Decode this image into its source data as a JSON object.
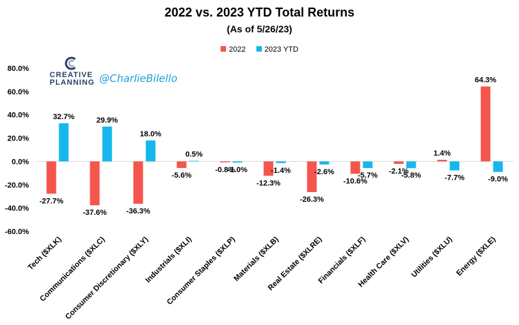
{
  "chart_data": {
    "type": "bar",
    "title": "2022 vs. 2023 YTD Total Returns",
    "subtitle": "(As of 5/26/23)",
    "categories": [
      "Tech ($XLK)",
      "Communications ($XLC)",
      "Consumer Discretionary ($XLY)",
      "Industrials ($XLI)",
      "Consumer Staples ($XLP)",
      "Materials ($XLB)",
      "Real Estate ($XLRE)",
      "Financials ($XLF)",
      "Health Care ($XLV)",
      "Utilities ($XLU)",
      "Energy ($XLE)"
    ],
    "series": [
      {
        "name": "2022",
        "color": "#f4554d",
        "values": [
          -27.7,
          -37.6,
          -36.3,
          -5.6,
          -0.8,
          -12.3,
          -26.3,
          -10.6,
          -2.1,
          1.4,
          64.3
        ],
        "labels": [
          "-27.7%",
          "-37.6%",
          "-36.3%",
          "-5.6%",
          "-0.8%",
          "-12.3%",
          "-26.3%",
          "-10.6%",
          "-2.1%",
          "1.4%",
          "64.3%"
        ]
      },
      {
        "name": "2023 YTD",
        "color": "#15b7ec",
        "values": [
          32.7,
          29.9,
          18.0,
          0.5,
          -1.0,
          -1.4,
          -2.6,
          -5.7,
          -5.8,
          -7.7,
          -9.0
        ],
        "labels": [
          "32.7%",
          "29.9%",
          "18.0%",
          "0.5%",
          "-1.0%",
          "-1.4%",
          "-2.6%",
          "-5.7%",
          "-5.8%",
          "-7.7%",
          "-9.0%"
        ]
      }
    ],
    "ylim": [
      -60,
      80
    ],
    "yticks": [
      80,
      60,
      40,
      20,
      0,
      -20,
      -40,
      -60
    ],
    "ytick_labels": [
      "80.0%",
      "60.0%",
      "40.0%",
      "20.0%",
      "0.0%",
      "-20.0%",
      "-40.0%",
      "-60.0%"
    ],
    "grid": false,
    "legend_position": "top-center"
  },
  "branding": {
    "logo_line1": "CREATIVE",
    "logo_line2": "PLANNING",
    "handle": "@CharlieBilello",
    "logo_color": "#2a4064",
    "handle_color": "#1fa0d8"
  }
}
